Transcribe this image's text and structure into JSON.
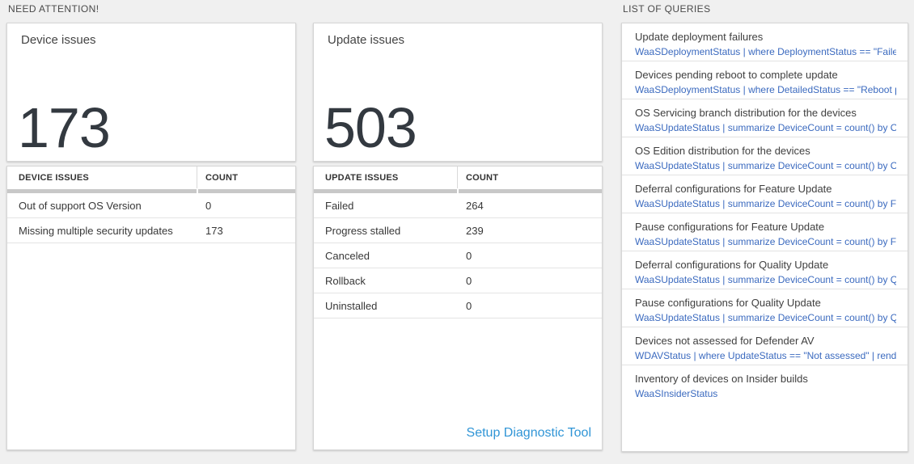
{
  "need_attention": {
    "section_label": "NEED ATTENTION!",
    "device_card": {
      "title": "Device issues",
      "count": "173"
    },
    "device_table": {
      "headers": [
        "DEVICE ISSUES",
        "COUNT"
      ],
      "rows": [
        {
          "label": "Out of support OS Version",
          "count": "0"
        },
        {
          "label": "Missing multiple security updates",
          "count": "173"
        }
      ]
    },
    "update_card": {
      "title": "Update issues",
      "count": "503"
    },
    "update_table": {
      "headers": [
        "UPDATE ISSUES",
        "COUNT"
      ],
      "rows": [
        {
          "label": "Failed",
          "count": "264"
        },
        {
          "label": "Progress stalled",
          "count": "239"
        },
        {
          "label": "Canceled",
          "count": "0"
        },
        {
          "label": "Rollback",
          "count": "0"
        },
        {
          "label": "Uninstalled",
          "count": "0"
        }
      ],
      "footer_link": "Setup Diagnostic Tool"
    }
  },
  "queries_panel": {
    "section_label": "LIST OF QUERIES",
    "items": [
      {
        "title": "Update deployment failures",
        "query": "WaaSDeploymentStatus | where DeploymentStatus == \"Failed\" |..."
      },
      {
        "title": "Devices pending reboot to complete update",
        "query": "WaaSDeploymentStatus | where DetailedStatus == \"Reboot pend..."
      },
      {
        "title": "OS Servicing branch distribution for the devices",
        "query": "WaaSUpdateStatus | summarize DeviceCount = count() by OSSer..."
      },
      {
        "title": "OS Edition distribution for the devices",
        "query": "WaaSUpdateStatus | summarize DeviceCount = count() by OSEdit..."
      },
      {
        "title": "Deferral configurations for Feature Update",
        "query": "WaaSUpdateStatus | summarize DeviceCount = count() by Featur..."
      },
      {
        "title": "Pause configurations for Feature Update",
        "query": "WaaSUpdateStatus | summarize DeviceCount = count() by Featur..."
      },
      {
        "title": "Deferral configurations for Quality Update",
        "query": "WaaSUpdateStatus | summarize DeviceCount = count() by Qualit..."
      },
      {
        "title": "Pause configurations for Quality Update",
        "query": "WaaSUpdateStatus | summarize DeviceCount = count() by Qualit..."
      },
      {
        "title": "Devices not assessed for Defender AV",
        "query": "WDAVStatus | where UpdateStatus == \"Not assessed\" | render ta..."
      },
      {
        "title": "Inventory of devices on Insider builds",
        "query": "WaaSInsiderStatus"
      }
    ]
  },
  "colors": {
    "page_bg": "#f0f0f0",
    "card_border": "#d6d6d6",
    "big_number": "#333940",
    "query_link_blue": "#3b6abf",
    "setup_link_blue": "#3095d6",
    "scrollbar_gray": "#c8c8c8"
  }
}
